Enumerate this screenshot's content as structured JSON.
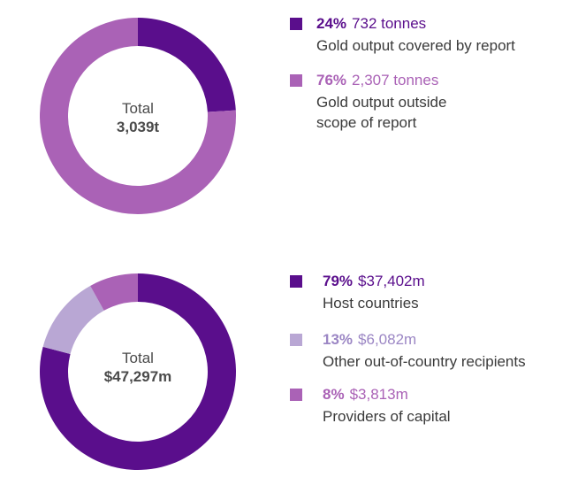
{
  "chart_data": [
    {
      "type": "pie",
      "center_label": {
        "line1": "Total",
        "line2": "3,039t"
      },
      "slices": [
        {
          "pct": "24%",
          "value_label": "732 tonnes",
          "desc": [
            "Gold output covered by report"
          ],
          "value": 732,
          "color": "#5a0e8c",
          "text_color": "#5a0e8c"
        },
        {
          "pct": "76%",
          "value_label": "2,307 tonnes",
          "desc": [
            "Gold output outside",
            "scope of report"
          ],
          "value": 2307,
          "color": "#aa62b6",
          "text_color": "#aa62b6"
        }
      ]
    },
    {
      "type": "pie",
      "center_label": {
        "line1": "Total",
        "line2": "$47,297m"
      },
      "slices": [
        {
          "pct": "79%",
          "value_label": "$37,402m",
          "desc": [
            "Host countries"
          ],
          "value": 37402,
          "color": "#5a0e8c",
          "text_color": "#5a0e8c"
        },
        {
          "pct": "13%",
          "value_label": "$6,082m",
          "desc": [
            "Other out-of-country recipients"
          ],
          "value": 6082,
          "color": "#b9a7d4",
          "text_color": "#9b86c4"
        },
        {
          "pct": "8%",
          "value_label": "$3,813m",
          "desc": [
            "Providers of capital"
          ],
          "value": 3813,
          "color": "#aa62b6",
          "text_color": "#aa62b6"
        }
      ]
    }
  ]
}
